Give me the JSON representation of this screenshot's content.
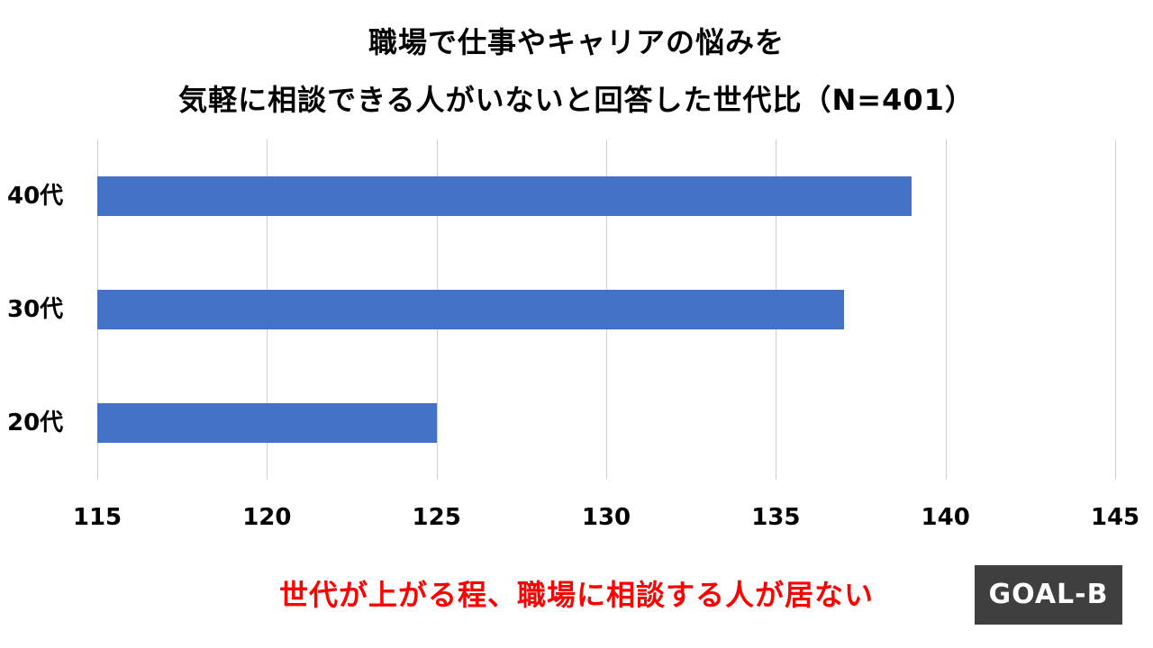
{
  "title": {
    "line1": "職場で仕事やキャリアの悩みを",
    "line2": "気軽に相談できる人がいないと回答した世代比（N=401）"
  },
  "caption": "世代が上がる程、職場に相談する人が居ない",
  "logo": {
    "text": "GOAL-B",
    "background": "#3f3f3f"
  },
  "colors": {
    "bar": "#4472c4",
    "caption": "#ff0000",
    "gridline": "#d0d0d0"
  },
  "chart_data": {
    "type": "bar",
    "orientation": "horizontal",
    "title": "職場で仕事やキャリアの悩みを気軽に相談できる人がいないと回答した世代比（N=401）",
    "categories": [
      "40代",
      "30代",
      "20代"
    ],
    "values": [
      139,
      137,
      125
    ],
    "xlabel": "",
    "ylabel": "",
    "xlim": [
      115,
      145
    ],
    "ticks": [
      115,
      120,
      125,
      130,
      135,
      140,
      145
    ],
    "tick_labels": [
      "115",
      "120",
      "125",
      "130",
      "135",
      "140",
      "145"
    ],
    "grid": "vertical",
    "legend": "none",
    "annotation": "世代が上がる程、職場に相談する人が居ない"
  }
}
